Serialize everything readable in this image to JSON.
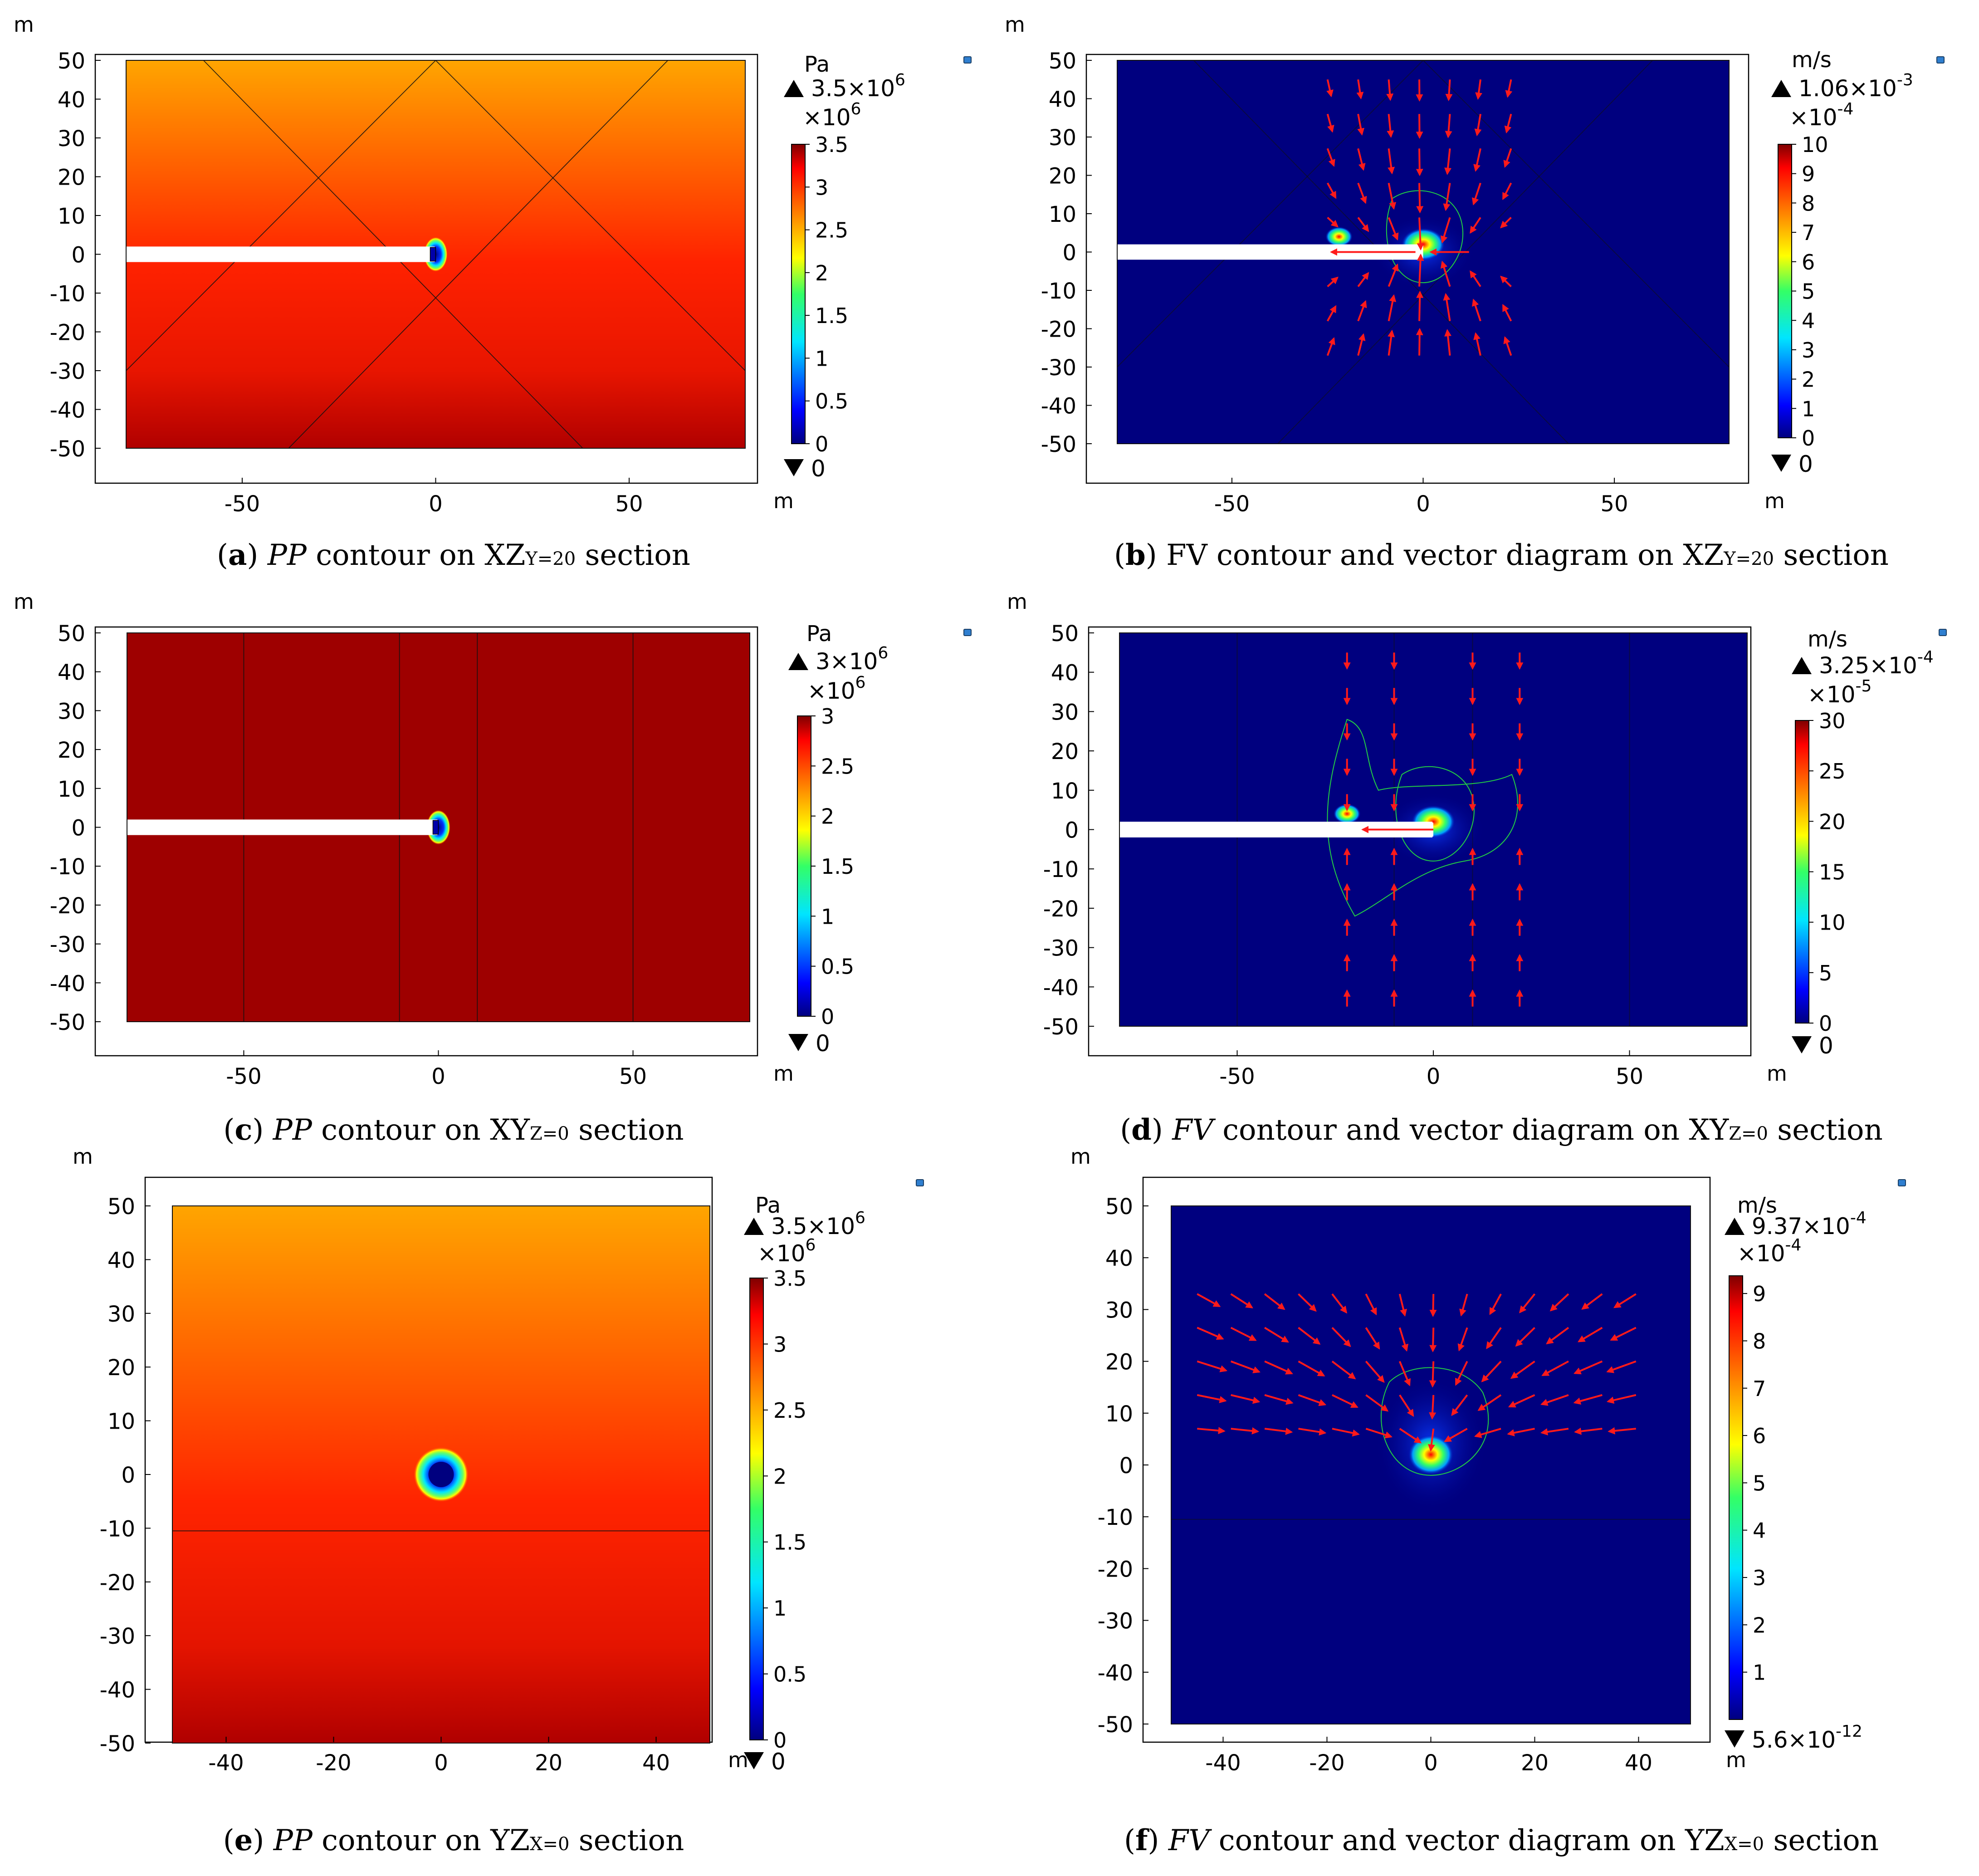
{
  "figure": {
    "panels": [
      {
        "id": "a",
        "caption": {
          "label": "(a)",
          "parts": [
            {
              "t": "PP",
              "i": true
            },
            {
              "t": " contour on XZ"
            },
            {
              "t": "Y=20",
              "sub": true
            },
            {
              "t": " section"
            }
          ]
        },
        "unit_axis": "m",
        "colorbar": {
          "unit": "Pa",
          "max_label": "3.5×10",
          "max_exp": "6",
          "multiplier": "×10",
          "multiplier_exp": "6",
          "ticks": [
            "3.5",
            "3",
            "2.5",
            "2",
            "1.5",
            "1",
            "0.5",
            "0"
          ],
          "min_label": "0",
          "min_exp": ""
        }
      },
      {
        "id": "b",
        "caption": {
          "label": "(b)",
          "parts": [
            {
              "t": " FV contour and vector diagram on XZ"
            },
            {
              "t": "Y=20",
              "sub": true
            },
            {
              "t": " section"
            }
          ]
        },
        "unit_axis": "m",
        "colorbar": {
          "unit": "m/s",
          "max_label": "1.06×10",
          "max_exp": "-3",
          "multiplier": "×10",
          "multiplier_exp": "-4",
          "ticks": [
            "10",
            "9",
            "8",
            "7",
            "6",
            "5",
            "4",
            "3",
            "2",
            "1",
            "0"
          ],
          "min_label": "0",
          "min_exp": ""
        }
      },
      {
        "id": "c",
        "caption": {
          "label": "(c)",
          "parts": [
            {
              "t": "PP",
              "i": true
            },
            {
              "t": " contour on XY"
            },
            {
              "t": "Z=0",
              "sub": true
            },
            {
              "t": " section"
            }
          ]
        },
        "unit_axis": "m",
        "colorbar": {
          "unit": "Pa",
          "max_label": "3×10",
          "max_exp": "6",
          "multiplier": "×10",
          "multiplier_exp": "6",
          "ticks": [
            "3",
            "2.5",
            "2",
            "1.5",
            "1",
            "0.5",
            "0"
          ],
          "min_label": "0",
          "min_exp": ""
        }
      },
      {
        "id": "d",
        "caption": {
          "label": "(d)",
          "parts": [
            {
              "t": "FV",
              "i": true
            },
            {
              "t": " contour and vector diagram on XY"
            },
            {
              "t": "Z=0",
              "sub": true
            },
            {
              "t": " section"
            }
          ]
        },
        "unit_axis": "m",
        "colorbar": {
          "unit": "m/s",
          "max_label": "3.25×10",
          "max_exp": "-4",
          "multiplier": "×10",
          "multiplier_exp": "-5",
          "ticks": [
            "30",
            "25",
            "20",
            "15",
            "10",
            "5",
            "0"
          ],
          "min_label": "0",
          "min_exp": ""
        }
      },
      {
        "id": "e",
        "caption": {
          "label": "(e)",
          "parts": [
            {
              "t": "PP",
              "i": true
            },
            {
              "t": " contour on YZ"
            },
            {
              "t": "X=0",
              "sub": true
            },
            {
              "t": " section"
            }
          ]
        },
        "unit_axis": "m",
        "colorbar": {
          "unit": "Pa",
          "max_label": "3.5×10",
          "max_exp": "6",
          "multiplier": "×10",
          "multiplier_exp": "6",
          "ticks": [
            "3.5",
            "3",
            "2.5",
            "2",
            "1.5",
            "1",
            "0.5",
            "0"
          ],
          "min_label": "0",
          "min_exp": ""
        }
      },
      {
        "id": "f",
        "caption": {
          "label": "(f)",
          "parts": [
            {
              "t": "FV",
              "i": true
            },
            {
              "t": " contour and vector diagram on YZ"
            },
            {
              "t": "X=0",
              "sub": true
            },
            {
              "t": " section"
            }
          ]
        },
        "unit_axis": "m",
        "colorbar": {
          "unit": "m/s",
          "max_label": "9.37×10",
          "max_exp": "-4",
          "multiplier": "×10",
          "multiplier_exp": "-4",
          "ticks": [
            "9",
            "8",
            "7",
            "6",
            "5",
            "4",
            "3",
            "2",
            "1"
          ],
          "min_label": "5.6×10",
          "min_exp": "-12"
        }
      }
    ]
  },
  "chart_data": [
    {
      "type": "heatmap",
      "panel": "a",
      "quantity": "PP",
      "xlim": [
        -80,
        80
      ],
      "ylim": [
        -50,
        50
      ],
      "xticks": [
        "-50",
        "0",
        "50"
      ],
      "yticks": [
        "50",
        "40",
        "30",
        "20",
        "10",
        "0",
        "-10",
        "-20",
        "-30",
        "-40",
        "-50"
      ],
      "xlabel": "m",
      "ylabel": "m",
      "range": [
        0,
        3.5
      ],
      "scale_exp": 6,
      "colormap": "rainbow"
    },
    {
      "type": "heatmap",
      "panel": "b",
      "quantity": "FV",
      "xlim": [
        -80,
        80
      ],
      "ylim": [
        -50,
        50
      ],
      "xticks": [
        "-50",
        "0",
        "50"
      ],
      "yticks": [
        "50",
        "40",
        "30",
        "20",
        "10",
        "0",
        "-10",
        "-20",
        "-30",
        "-40",
        "-50"
      ],
      "xlabel": "m",
      "ylabel": "m",
      "range": [
        0,
        10.6
      ],
      "scale_exp": -4,
      "colormap": "rainbow",
      "vectors": true
    },
    {
      "type": "heatmap",
      "panel": "c",
      "quantity": "PP",
      "xlim": [
        -80,
        80
      ],
      "ylim": [
        -50,
        50
      ],
      "xticks": [
        "-50",
        "0",
        "50"
      ],
      "yticks": [
        "50",
        "40",
        "30",
        "20",
        "10",
        "0",
        "-10",
        "-20",
        "-30",
        "-40",
        "-50"
      ],
      "xlabel": "m",
      "ylabel": "m",
      "range": [
        0,
        3
      ],
      "scale_exp": 6,
      "colormap": "rainbow"
    },
    {
      "type": "heatmap",
      "panel": "d",
      "quantity": "FV",
      "xlim": [
        -80,
        80
      ],
      "ylim": [
        -50,
        50
      ],
      "xticks": [
        "-50",
        "0",
        "50"
      ],
      "yticks": [
        "50",
        "40",
        "30",
        "20",
        "10",
        "0",
        "-10",
        "-20",
        "-30",
        "-40",
        "-50"
      ],
      "xlabel": "m",
      "ylabel": "m",
      "range": [
        0,
        32.5
      ],
      "scale_exp": -5,
      "colormap": "rainbow",
      "vectors": true
    },
    {
      "type": "heatmap",
      "panel": "e",
      "quantity": "PP",
      "xlim": [
        -50,
        50
      ],
      "ylim": [
        -50,
        50
      ],
      "xticks": [
        "-40",
        "-20",
        "0",
        "20",
        "40"
      ],
      "yticks": [
        "50",
        "40",
        "30",
        "20",
        "10",
        "0",
        "-10",
        "-20",
        "-30",
        "-40",
        "-50"
      ],
      "xlabel": "m",
      "ylabel": "m",
      "range": [
        0,
        3.5
      ],
      "scale_exp": 6,
      "colormap": "rainbow"
    },
    {
      "type": "heatmap",
      "panel": "f",
      "quantity": "FV",
      "xlim": [
        -50,
        50
      ],
      "ylim": [
        -50,
        50
      ],
      "xticks": [
        "-40",
        "-20",
        "0",
        "20",
        "40"
      ],
      "yticks": [
        "50",
        "40",
        "30",
        "20",
        "10",
        "0",
        "-10",
        "-20",
        "-30",
        "-40",
        "-50"
      ],
      "xlabel": "m",
      "ylabel": "m",
      "range": [
        0,
        9.37
      ],
      "scale_exp": -4,
      "colormap": "rainbow",
      "vectors": true
    }
  ]
}
